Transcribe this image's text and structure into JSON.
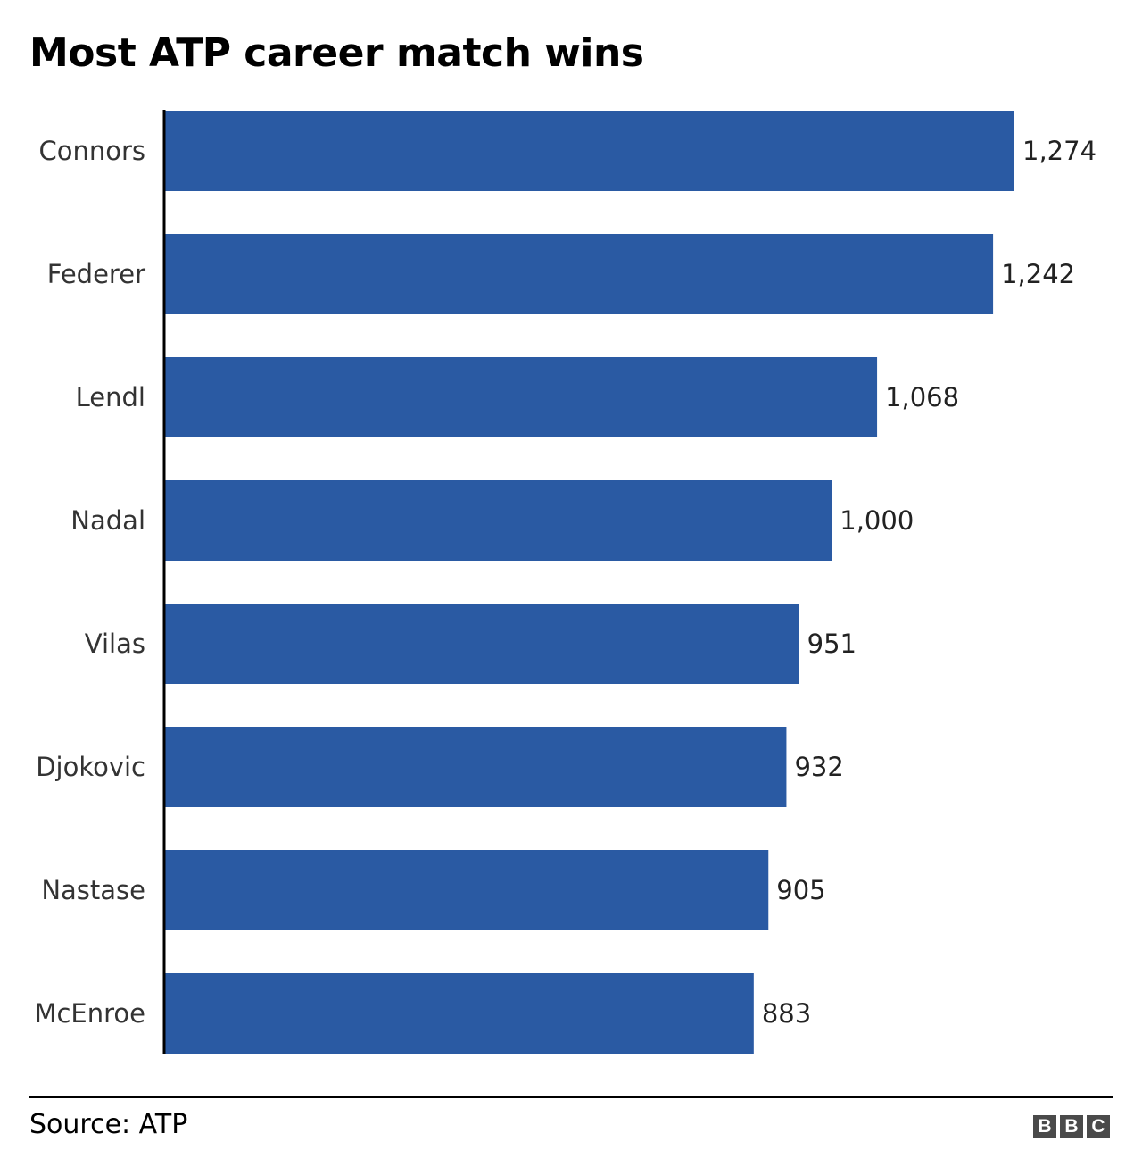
{
  "chart_data": {
    "type": "bar",
    "orientation": "horizontal",
    "title": "Most ATP career match wins",
    "categories": [
      "Connors",
      "Federer",
      "Lendl",
      "Nadal",
      "Vilas",
      "Djokovic",
      "Nastase",
      "McEnroe"
    ],
    "values": [
      1274,
      1242,
      1068,
      1000,
      951,
      932,
      905,
      883
    ],
    "value_labels": [
      "1,274",
      "1,242",
      "1,068",
      "1,000",
      "951",
      "932",
      "905",
      "883"
    ],
    "bar_color": "#2a5aa3",
    "xlim": [
      0,
      1274
    ],
    "grid": false,
    "legend": "none"
  },
  "footer": {
    "source": "Source: ATP",
    "logo": [
      "B",
      "B",
      "C"
    ]
  }
}
